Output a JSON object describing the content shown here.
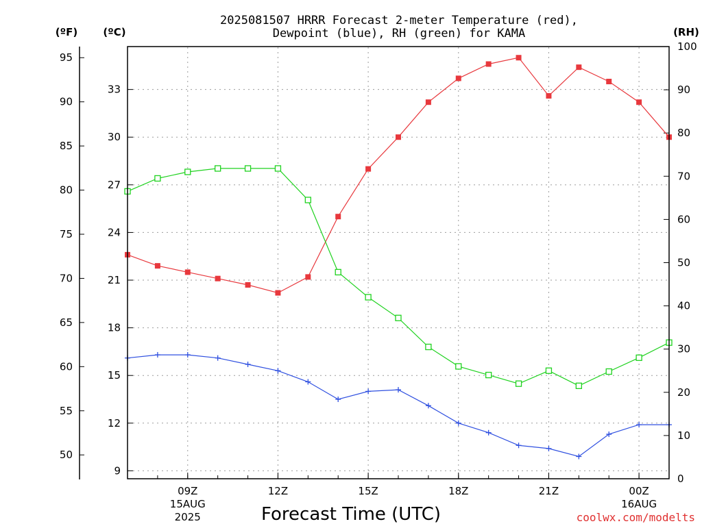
{
  "chart_data": {
    "type": "line",
    "title_line1": "2025081507 HRRR Forecast 2-meter Temperature (red),",
    "title_line2": "Dewpoint (blue), RH (green) for KAMA",
    "xlabel": "Forecast Time (UTC)",
    "units": {
      "fahrenheit": "(ºF)",
      "celsius": "(ºC)",
      "rh": "(RH)"
    },
    "x": [
      "07Z",
      "08Z",
      "09Z",
      "10Z",
      "11Z",
      "12Z",
      "13Z",
      "14Z",
      "15Z",
      "16Z",
      "17Z",
      "18Z",
      "19Z",
      "20Z",
      "21Z",
      "22Z",
      "23Z",
      "00Z",
      "01Z"
    ],
    "x_tick_labels": [
      {
        "label": "09Z",
        "date": "15AUG",
        "year": "2025"
      },
      {
        "label": "12Z",
        "date": "",
        "year": ""
      },
      {
        "label": "15Z",
        "date": "",
        "year": ""
      },
      {
        "label": "18Z",
        "date": "",
        "year": ""
      },
      {
        "label": "21Z",
        "date": "",
        "year": ""
      },
      {
        "label": "00Z",
        "date": "16AUG",
        "year": ""
      }
    ],
    "y_celsius": {
      "range": [
        8.5,
        35.7
      ],
      "ticks": [
        "9",
        "12",
        "15",
        "18",
        "21",
        "24",
        "27",
        "30",
        "33"
      ]
    },
    "y_fahrenheit": {
      "ticks": [
        "50",
        "55",
        "60",
        "65",
        "70",
        "75",
        "80",
        "85",
        "90",
        "95"
      ]
    },
    "y_rh": {
      "range": [
        0,
        100
      ],
      "ticks": [
        "0",
        "10",
        "20",
        "30",
        "40",
        "50",
        "60",
        "70",
        "80",
        "90",
        "100"
      ]
    },
    "series": [
      {
        "name": "Temperature",
        "axis": "celsius",
        "color": "#e8383d",
        "marker": "filled-square",
        "values": [
          22.6,
          21.9,
          21.5,
          21.1,
          20.7,
          20.2,
          21.2,
          25.0,
          28.0,
          30.0,
          32.2,
          33.7,
          34.6,
          35.0,
          32.6,
          34.4,
          33.5,
          32.2,
          30.0
        ]
      },
      {
        "name": "Dewpoint",
        "axis": "celsius",
        "color": "#2e4fe0",
        "marker": "plus",
        "values": [
          16.1,
          16.3,
          16.3,
          16.1,
          15.7,
          15.3,
          14.6,
          13.5,
          14.0,
          14.1,
          13.1,
          12.0,
          11.4,
          10.6,
          10.4,
          9.9,
          11.3,
          11.9,
          11.9
        ]
      },
      {
        "name": "RH",
        "axis": "rh",
        "color": "#1fd21f",
        "marker": "open-square",
        "values": [
          66.5,
          69.5,
          71.0,
          71.8,
          71.8,
          71.8,
          64.5,
          47.8,
          42.0,
          37.2,
          30.5,
          26.0,
          24.0,
          22.0,
          25.0,
          21.5,
          24.8,
          28.0,
          31.5
        ]
      }
    ],
    "grid": true,
    "credit": "coolwx.com/modelts"
  }
}
